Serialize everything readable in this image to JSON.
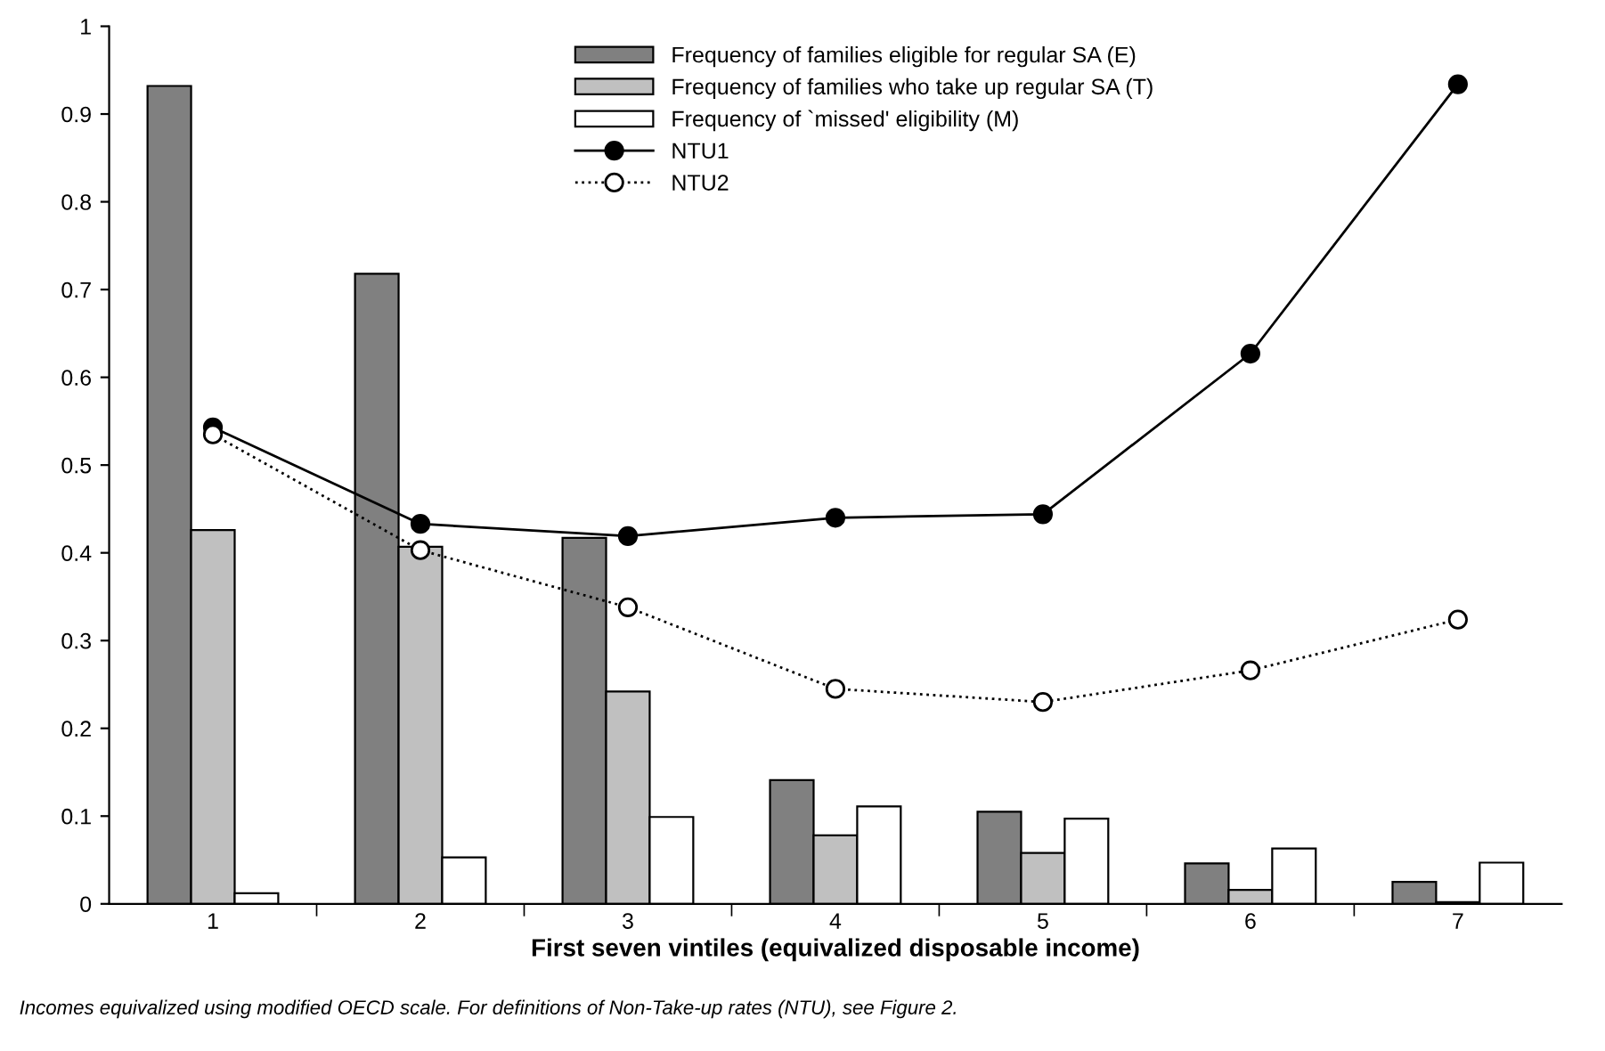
{
  "chart_data": {
    "type": "bar",
    "xlabel": "First seven vintiles (equivalized disposable income)",
    "categories": [
      "1",
      "2",
      "3",
      "4",
      "5",
      "6",
      "7"
    ],
    "series": [
      {
        "name": "Frequency of families eligible for regular SA (E)",
        "color": "#808080",
        "values": [
          0.932,
          0.718,
          0.417,
          0.141,
          0.105,
          0.046,
          0.025
        ]
      },
      {
        "name": "Frequency of families who take up regular SA (T)",
        "color": "#c0c0c0",
        "values": [
          0.426,
          0.407,
          0.242,
          0.078,
          0.058,
          0.016,
          0.002
        ]
      },
      {
        "name": "Frequency of `missed' eligibility (M)",
        "color": "#ffffff",
        "values": [
          0.012,
          0.053,
          0.099,
          0.111,
          0.097,
          0.063,
          0.047
        ]
      },
      {
        "name": "NTU1",
        "type": "line",
        "color": "#000000",
        "marker": "circle",
        "line_style": "solid",
        "values": [
          0.543,
          0.433,
          0.419,
          0.44,
          0.444,
          0.627,
          0.934
        ]
      },
      {
        "name": "NTU2",
        "type": "line",
        "color": "#000000",
        "marker": "circle",
        "line_style": "dotted",
        "values": [
          0.535,
          0.403,
          0.338,
          0.245,
          0.23,
          0.266,
          0.324
        ]
      }
    ],
    "ylim": [
      0,
      1
    ],
    "yticks": [
      0,
      0.1,
      0.2,
      0.3,
      0.4,
      0.5,
      0.6,
      0.7,
      0.8,
      0.9,
      1
    ],
    "grid": false,
    "legend": "top",
    "annotations": [
      "Incomes equivalized using modified OECD scale. For definitions of Non-Take-up rates (NTU), see Figure 2."
    ]
  }
}
